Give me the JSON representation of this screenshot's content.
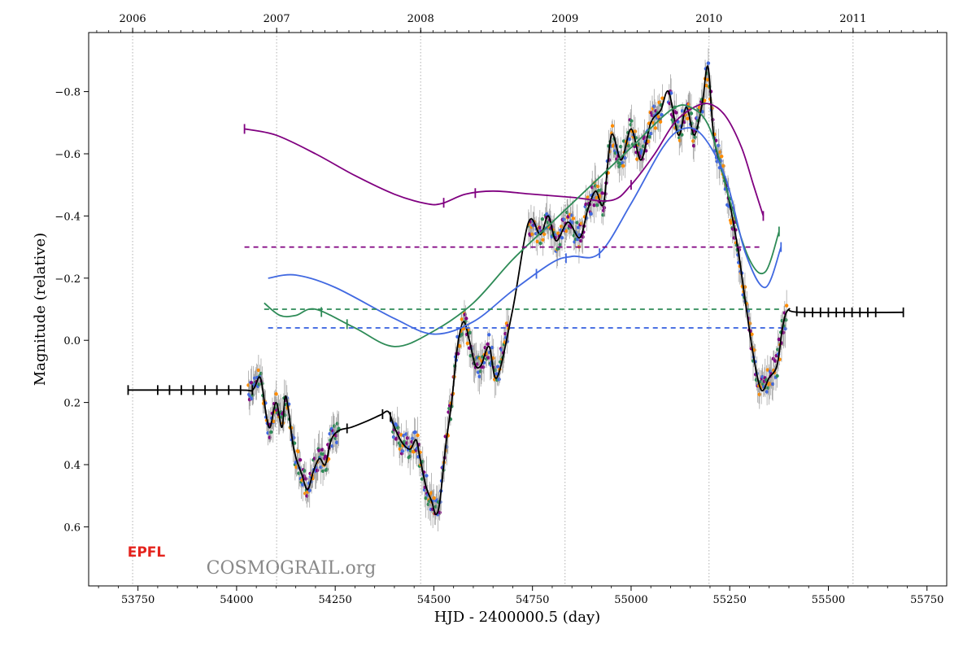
{
  "chart_data": {
    "type": "scatter",
    "xlabel": "HJD - 2400000.5 (day)",
    "ylabel": "Magnitude (relative)",
    "xlim": [
      53625,
      55800
    ],
    "ylim": [
      0.79,
      -0.99
    ],
    "y_inverted": true,
    "x_ticks": [
      53750,
      54000,
      54250,
      54500,
      54750,
      55000,
      55250,
      55500,
      55750
    ],
    "y_ticks": [
      0.6,
      0.4,
      0.2,
      0.0,
      -0.2,
      -0.4,
      -0.6,
      -0.8
    ],
    "top_axis": {
      "ticks": [
        {
          "x": 53736.5,
          "label": "2006"
        },
        {
          "x": 54101.5,
          "label": "2007"
        },
        {
          "x": 54466.5,
          "label": "2008"
        },
        {
          "x": 54832.5,
          "label": "2009"
        },
        {
          "x": 55197.5,
          "label": "2010"
        },
        {
          "x": 55562.5,
          "label": "2011"
        }
      ],
      "vertical_gridlines": true
    },
    "watermark": "COSMOGRAIL.org",
    "logo": "EPFL",
    "series": [
      {
        "color": "#000000",
        "style": "line",
        "points": [
          [
            53725,
            0.16
          ],
          [
            54000,
            0.16
          ],
          [
            54040,
            0.16
          ],
          [
            54060,
            0.12
          ],
          [
            54075,
            0.24
          ],
          [
            54085,
            0.28
          ],
          [
            54100,
            0.2
          ],
          [
            54115,
            0.28
          ],
          [
            54125,
            0.18
          ],
          [
            54145,
            0.35
          ],
          [
            54165,
            0.43
          ],
          [
            54180,
            0.48
          ],
          [
            54195,
            0.42
          ],
          [
            54210,
            0.38
          ],
          [
            54225,
            0.4
          ],
          [
            54240,
            0.32
          ],
          [
            54260,
            0.29
          ],
          [
            54290,
            0.28
          ],
          [
            54330,
            0.26
          ],
          [
            54365,
            0.24
          ],
          [
            54385,
            0.23
          ],
          [
            54400,
            0.28
          ],
          [
            54420,
            0.33
          ],
          [
            54440,
            0.35
          ],
          [
            54455,
            0.32
          ],
          [
            54465,
            0.38
          ],
          [
            54480,
            0.47
          ],
          [
            54495,
            0.52
          ],
          [
            54505,
            0.56
          ],
          [
            54515,
            0.52
          ],
          [
            54530,
            0.34
          ],
          [
            54545,
            0.2
          ],
          [
            54560,
            0.02
          ],
          [
            54575,
            -0.06
          ],
          [
            54590,
            0.0
          ],
          [
            54605,
            0.08
          ],
          [
            54620,
            0.08
          ],
          [
            54640,
            0.02
          ],
          [
            54660,
            0.12
          ],
          [
            54700,
            -0.1
          ],
          [
            54740,
            -0.38
          ],
          [
            54770,
            -0.34
          ],
          [
            54790,
            -0.4
          ],
          [
            54810,
            -0.32
          ],
          [
            54840,
            -0.38
          ],
          [
            54870,
            -0.33
          ],
          [
            54890,
            -0.42
          ],
          [
            54910,
            -0.48
          ],
          [
            54930,
            -0.44
          ],
          [
            54950,
            -0.66
          ],
          [
            54975,
            -0.58
          ],
          [
            55000,
            -0.68
          ],
          [
            55025,
            -0.58
          ],
          [
            55050,
            -0.7
          ],
          [
            55075,
            -0.74
          ],
          [
            55095,
            -0.8
          ],
          [
            55120,
            -0.66
          ],
          [
            55140,
            -0.75
          ],
          [
            55160,
            -0.66
          ],
          [
            55180,
            -0.76
          ],
          [
            55195,
            -0.88
          ],
          [
            55210,
            -0.65
          ],
          [
            55240,
            -0.5
          ],
          [
            55270,
            -0.3
          ],
          [
            55290,
            -0.12
          ],
          [
            55310,
            0.05
          ],
          [
            55330,
            0.16
          ],
          [
            55350,
            0.12
          ],
          [
            55370,
            0.08
          ],
          [
            55385,
            -0.05
          ],
          [
            55400,
            -0.1
          ],
          [
            55430,
            -0.09
          ],
          [
            55690,
            -0.09
          ]
        ]
      },
      {
        "color": "#800080",
        "style": "line",
        "points": [
          [
            54020,
            -0.68
          ],
          [
            54100,
            -0.66
          ],
          [
            54200,
            -0.6
          ],
          [
            54300,
            -0.53
          ],
          [
            54400,
            -0.47
          ],
          [
            54480,
            -0.44
          ],
          [
            54520,
            -0.44
          ],
          [
            54580,
            -0.47
          ],
          [
            54650,
            -0.48
          ],
          [
            54750,
            -0.47
          ],
          [
            54850,
            -0.46
          ],
          [
            54950,
            -0.45
          ],
          [
            55000,
            -0.5
          ],
          [
            55060,
            -0.6
          ],
          [
            55110,
            -0.7
          ],
          [
            55160,
            -0.75
          ],
          [
            55200,
            -0.76
          ],
          [
            55240,
            -0.72
          ],
          [
            55280,
            -0.62
          ],
          [
            55310,
            -0.5
          ],
          [
            55335,
            -0.4
          ]
        ]
      },
      {
        "color": "#2e8b57",
        "style": "line",
        "points": [
          [
            54070,
            -0.12
          ],
          [
            54110,
            -0.08
          ],
          [
            54150,
            -0.08
          ],
          [
            54200,
            -0.1
          ],
          [
            54300,
            -0.04
          ],
          [
            54400,
            0.02
          ],
          [
            54500,
            -0.03
          ],
          [
            54600,
            -0.12
          ],
          [
            54700,
            -0.26
          ],
          [
            54800,
            -0.38
          ],
          [
            54900,
            -0.5
          ],
          [
            55000,
            -0.62
          ],
          [
            55100,
            -0.74
          ],
          [
            55150,
            -0.75
          ],
          [
            55200,
            -0.68
          ],
          [
            55250,
            -0.45
          ],
          [
            55300,
            -0.26
          ],
          [
            55340,
            -0.22
          ],
          [
            55375,
            -0.35
          ]
        ]
      },
      {
        "color": "#4169e1",
        "style": "line",
        "points": [
          [
            54080,
            -0.2
          ],
          [
            54150,
            -0.21
          ],
          [
            54250,
            -0.17
          ],
          [
            54400,
            -0.07
          ],
          [
            54500,
            -0.02
          ],
          [
            54600,
            -0.06
          ],
          [
            54700,
            -0.16
          ],
          [
            54800,
            -0.25
          ],
          [
            54850,
            -0.27
          ],
          [
            54920,
            -0.28
          ],
          [
            55000,
            -0.44
          ],
          [
            55080,
            -0.62
          ],
          [
            55130,
            -0.68
          ],
          [
            55180,
            -0.66
          ],
          [
            55240,
            -0.52
          ],
          [
            55290,
            -0.28
          ],
          [
            55340,
            -0.17
          ],
          [
            55380,
            -0.3
          ]
        ]
      },
      {
        "color": "#800080",
        "style": "dashed",
        "points": [
          [
            54020,
            -0.3
          ],
          [
            55335,
            -0.3
          ]
        ]
      },
      {
        "color": "#2e8b57",
        "style": "dashed",
        "points": [
          [
            54070,
            -0.1
          ],
          [
            55375,
            -0.1
          ]
        ]
      },
      {
        "color": "#4169e1",
        "style": "dashed",
        "points": [
          [
            54080,
            -0.04
          ],
          [
            55380,
            -0.04
          ]
        ]
      }
    ],
    "scatter_colors": [
      "#800080",
      "#2e8b57",
      "#ff8c00",
      "#4169e1"
    ],
    "season_markers": {
      "black": [
        53725,
        53800,
        53830,
        53860,
        53890,
        53920,
        53950,
        53980,
        54010,
        54040,
        54280,
        54370,
        54390,
        55420,
        55440,
        55460,
        55480,
        55500,
        55520,
        55540,
        55560,
        55580,
        55600,
        55620,
        55690
      ],
      "purple": [
        54020,
        54525,
        54605,
        55000,
        55335
      ],
      "green": [
        54215,
        54280,
        55375
      ],
      "blue": [
        54760,
        54835,
        54920,
        55380
      ]
    }
  }
}
